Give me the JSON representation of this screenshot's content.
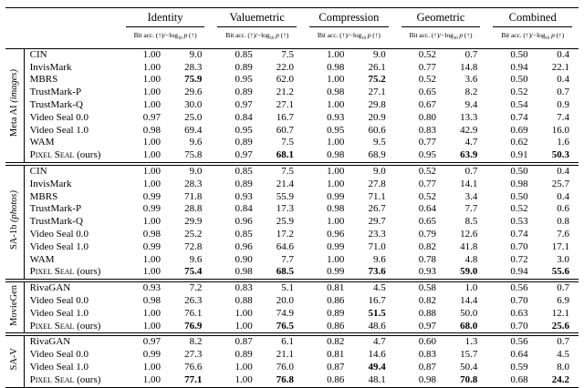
{
  "table": {
    "column_groups": [
      "Identity",
      "Valuemetric",
      "Compression",
      "Geometric",
      "Combined"
    ],
    "subheader_parts": [
      {
        "t": "Bit acc. (↑)/−log",
        "style": ""
      },
      {
        "t": "10",
        "style": "sub"
      },
      {
        "t": " ",
        "style": ""
      },
      {
        "t": "p",
        "style": "i"
      },
      {
        "t": " (↑)",
        "style": ""
      }
    ],
    "groups": [
      {
        "label_parts": [
          {
            "t": "Meta AI ",
            "style": ""
          },
          {
            "t": "(images)",
            "style": "i"
          }
        ],
        "rows": [
          {
            "method": "CIN",
            "cells": [
              "1.00",
              "9.0",
              "0.85",
              "7.5",
              "1.00",
              "9.0",
              "0.52",
              "0.7",
              "0.50",
              "0.4"
            ],
            "bold": []
          },
          {
            "method": "InvisMark",
            "cells": [
              "1.00",
              "28.3",
              "0.89",
              "22.0",
              "0.98",
              "26.1",
              "0.77",
              "14.8",
              "0.94",
              "22.1"
            ],
            "bold": []
          },
          {
            "method": "MBRS",
            "cells": [
              "1.00",
              "75.9",
              "0.95",
              "62.0",
              "1.00",
              "75.2",
              "0.52",
              "3.6",
              "0.50",
              "0.4"
            ],
            "bold": [
              1,
              5
            ]
          },
          {
            "method": "TrustMark-P",
            "cells": [
              "1.00",
              "29.6",
              "0.89",
              "21.2",
              "0.98",
              "27.1",
              "0.65",
              "8.2",
              "0.52",
              "0.7"
            ],
            "bold": []
          },
          {
            "method": "TrustMark-Q",
            "cells": [
              "1.00",
              "30.0",
              "0.97",
              "27.1",
              "1.00",
              "29.8",
              "0.67",
              "9.4",
              "0.54",
              "0.9"
            ],
            "bold": []
          },
          {
            "method": "Video Seal 0.0",
            "cells": [
              "0.97",
              "25.0",
              "0.84",
              "16.7",
              "0.93",
              "20.9",
              "0.80",
              "13.3",
              "0.74",
              "7.4"
            ],
            "bold": []
          },
          {
            "method": "Video Seal 1.0",
            "cells": [
              "0.98",
              "69.4",
              "0.95",
              "60.7",
              "0.95",
              "60.6",
              "0.83",
              "42.9",
              "0.69",
              "16.0"
            ],
            "bold": []
          },
          {
            "method": "WAM",
            "cells": [
              "1.00",
              "9.6",
              "0.89",
              "7.5",
              "1.00",
              "9.5",
              "0.77",
              "4.7",
              "0.62",
              "1.6"
            ],
            "bold": []
          },
          {
            "method_sc": "Pixel Seal",
            "method_suffix": " (ours)",
            "cells": [
              "1.00",
              "75.8",
              "0.97",
              "68.1",
              "0.98",
              "68.9",
              "0.95",
              "63.9",
              "0.91",
              "50.3"
            ],
            "bold": [
              3,
              7,
              9
            ]
          }
        ]
      },
      {
        "label_parts": [
          {
            "t": "SA-1b ",
            "style": ""
          },
          {
            "t": "(photos)",
            "style": "i"
          }
        ],
        "rows": [
          {
            "method": "CIN",
            "cells": [
              "1.00",
              "9.0",
              "0.85",
              "7.5",
              "1.00",
              "9.0",
              "0.52",
              "0.7",
              "0.50",
              "0.4"
            ],
            "bold": []
          },
          {
            "method": "InvisMark",
            "cells": [
              "1.00",
              "28.3",
              "0.89",
              "21.4",
              "1.00",
              "27.8",
              "0.77",
              "14.1",
              "0.98",
              "25.7"
            ],
            "bold": []
          },
          {
            "method": "MBRS",
            "cells": [
              "0.99",
              "71.8",
              "0.93",
              "55.9",
              "0.99",
              "71.1",
              "0.52",
              "3.4",
              "0.50",
              "0.4"
            ],
            "bold": []
          },
          {
            "method": "TrustMark-P",
            "cells": [
              "0.99",
              "28.8",
              "0.84",
              "17.3",
              "0.98",
              "26.7",
              "0.64",
              "7.7",
              "0.52",
              "0.6"
            ],
            "bold": []
          },
          {
            "method": "TrustMark-Q",
            "cells": [
              "1.00",
              "29.9",
              "0.96",
              "25.9",
              "1.00",
              "29.7",
              "0.65",
              "8.5",
              "0.53",
              "0.8"
            ],
            "bold": []
          },
          {
            "method": "Video Seal 0.0",
            "cells": [
              "0.98",
              "25.2",
              "0.85",
              "17.2",
              "0.96",
              "23.3",
              "0.79",
              "12.6",
              "0.74",
              "7.6"
            ],
            "bold": []
          },
          {
            "method": "Video Seal 1.0",
            "cells": [
              "0.99",
              "72.8",
              "0.96",
              "64.6",
              "0.99",
              "71.0",
              "0.82",
              "41.8",
              "0.70",
              "17.1"
            ],
            "bold": []
          },
          {
            "method": "WAM",
            "cells": [
              "1.00",
              "9.6",
              "0.90",
              "7.7",
              "1.00",
              "9.6",
              "0.78",
              "4.8",
              "0.72",
              "3.0"
            ],
            "bold": []
          },
          {
            "method_sc": "Pixel Seal",
            "method_suffix": " (ours)",
            "cells": [
              "1.00",
              "75.4",
              "0.98",
              "68.5",
              "0.99",
              "73.6",
              "0.93",
              "59.0",
              "0.94",
              "55.6"
            ],
            "bold": [
              1,
              3,
              5,
              7,
              9
            ]
          }
        ]
      },
      {
        "label_parts": [
          {
            "t": "MovieGen",
            "style": ""
          }
        ],
        "rows": [
          {
            "method": "RivaGAN",
            "cells": [
              "0.93",
              "7.2",
              "0.83",
              "5.1",
              "0.81",
              "4.5",
              "0.58",
              "1.0",
              "0.56",
              "0.7"
            ],
            "bold": []
          },
          {
            "method": "Video Seal 0.0",
            "cells": [
              "0.98",
              "26.3",
              "0.88",
              "20.0",
              "0.86",
              "16.7",
              "0.82",
              "14.4",
              "0.70",
              "6.9"
            ],
            "bold": []
          },
          {
            "method": "Video Seal 1.0",
            "cells": [
              "1.00",
              "76.1",
              "1.00",
              "74.9",
              "0.89",
              "51.5",
              "0.88",
              "50.0",
              "0.63",
              "12.1"
            ],
            "bold": [
              5
            ]
          },
          {
            "method_sc": "Pixel Seal",
            "method_suffix": " (ours)",
            "cells": [
              "1.00",
              "76.9",
              "1.00",
              "76.5",
              "0.86",
              "48.6",
              "0.97",
              "68.0",
              "0.70",
              "25.6"
            ],
            "bold": [
              1,
              3,
              7,
              9
            ]
          }
        ]
      },
      {
        "label_parts": [
          {
            "t": "SA-V",
            "style": ""
          }
        ],
        "rows": [
          {
            "method": "RivaGAN",
            "cells": [
              "0.97",
              "8.2",
              "0.87",
              "6.1",
              "0.82",
              "4.7",
              "0.60",
              "1.3",
              "0.56",
              "0.7"
            ],
            "bold": []
          },
          {
            "method": "Video Seal 0.0",
            "cells": [
              "0.99",
              "27.3",
              "0.89",
              "21.1",
              "0.81",
              "14.6",
              "0.83",
              "15.7",
              "0.64",
              "4.5"
            ],
            "bold": []
          },
          {
            "method": "Video Seal 1.0",
            "cells": [
              "1.00",
              "76.6",
              "1.00",
              "76.0",
              "0.87",
              "49.4",
              "0.87",
              "50.4",
              "0.59",
              "8.0"
            ],
            "bold": [
              5
            ]
          },
          {
            "method_sc": "Pixel Seal",
            "method_suffix": " (ours)",
            "cells": [
              "1.00",
              "77.1",
              "1.00",
              "76.8",
              "0.86",
              "48.1",
              "0.98",
              "70.8",
              "0.68",
              "24.2"
            ],
            "bold": [
              1,
              3,
              7,
              9
            ]
          }
        ]
      }
    ]
  }
}
